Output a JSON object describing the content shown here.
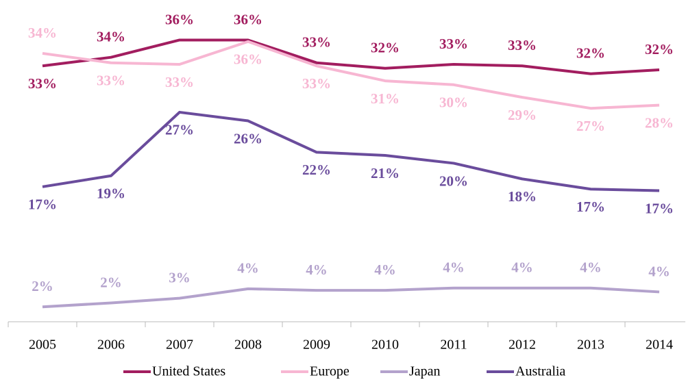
{
  "chart_data": {
    "type": "line",
    "categories": [
      "2005",
      "2006",
      "2007",
      "2008",
      "2009",
      "2010",
      "2011",
      "2012",
      "2013",
      "2014"
    ],
    "ylim": [
      0,
      41
    ],
    "series": [
      {
        "name": "United States",
        "color": "#a21d5f",
        "values": [
          32.6,
          33.7,
          35.9,
          35.9,
          33.0,
          32.3,
          32.8,
          32.6,
          31.6,
          32.1
        ],
        "value_labels": [
          "33%",
          "34%",
          "36%",
          "36%",
          "33%",
          "32%",
          "33%",
          "33%",
          "32%",
          "32%"
        ]
      },
      {
        "name": "Europe",
        "color": "#f7b6d2",
        "values": [
          34.2,
          33.0,
          32.8,
          35.7,
          32.6,
          30.7,
          30.2,
          28.6,
          27.2,
          27.6
        ],
        "value_labels": [
          "34%",
          "33%",
          "33%",
          "36%",
          "33%",
          "31%",
          "30%",
          "29%",
          "27%",
          "28%"
        ]
      },
      {
        "name": "Japan",
        "color": "#b3a2cc",
        "values": [
          1.9,
          2.4,
          3.0,
          4.2,
          4.0,
          4.0,
          4.3,
          4.3,
          4.3,
          3.8
        ],
        "value_labels": [
          "2%",
          "2%",
          "3%",
          "4%",
          "4%",
          "4%",
          "4%",
          "4%",
          "4%",
          "4%"
        ]
      },
      {
        "name": "Australia",
        "color": "#6a4c9c",
        "values": [
          17.2,
          18.6,
          26.7,
          25.6,
          21.6,
          21.2,
          20.2,
          18.2,
          16.9,
          16.7
        ],
        "value_labels": [
          "17%",
          "19%",
          "27%",
          "26%",
          "22%",
          "21%",
          "20%",
          "18%",
          "17%",
          "17%"
        ]
      }
    ]
  }
}
